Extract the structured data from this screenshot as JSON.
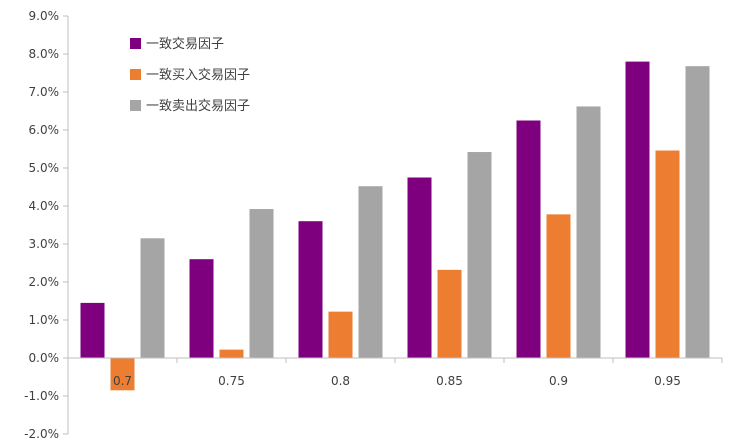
{
  "chart_data": {
    "type": "bar",
    "categories": [
      "0.7",
      "0.75",
      "0.8",
      "0.85",
      "0.9",
      "0.95"
    ],
    "series": [
      {
        "name": "一致交易因子",
        "color": "#7f007f",
        "values": [
          1.45,
          2.6,
          3.6,
          4.75,
          6.25,
          7.8
        ]
      },
      {
        "name": "一致买入交易因子",
        "color": "#ed7d31",
        "values": [
          -0.85,
          0.22,
          1.22,
          2.32,
          3.78,
          5.46
        ]
      },
      {
        "name": "一致卖出交易因子",
        "color": "#a5a5a5",
        "values": [
          3.15,
          3.92,
          4.52,
          5.42,
          6.62,
          7.68
        ]
      }
    ],
    "y_ticks": [
      "9.0%",
      "8.0%",
      "7.0%",
      "6.0%",
      "5.0%",
      "4.0%",
      "3.0%",
      "2.0%",
      "1.0%",
      "0.0%",
      "-1.0%",
      "-2.0%"
    ],
    "ylim": [
      -2,
      9
    ],
    "y_unit": "%",
    "legend_position": "top-left",
    "grid": false
  }
}
